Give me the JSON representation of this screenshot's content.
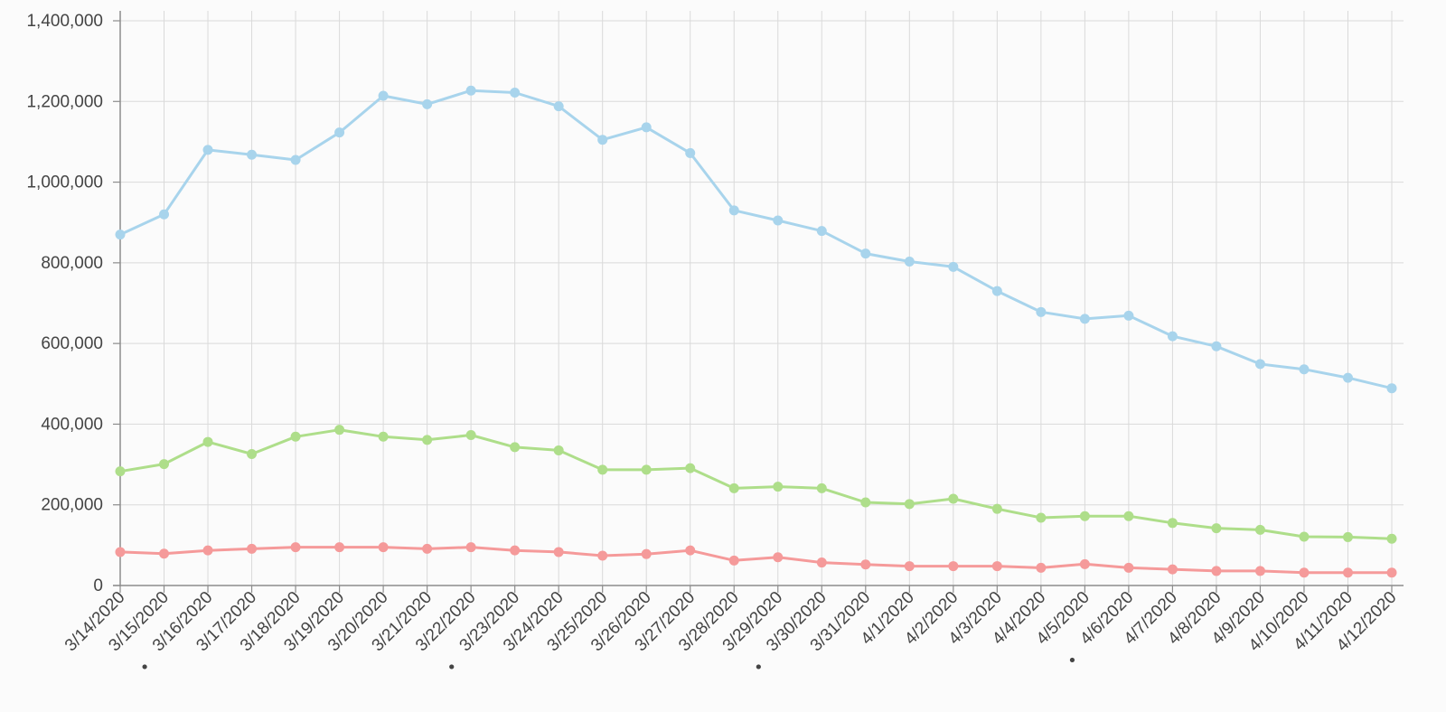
{
  "chart_data": {
    "type": "line",
    "title": "",
    "xlabel": "",
    "ylabel": "",
    "ylim": [
      0,
      1400000
    ],
    "yticks": [
      0,
      200000,
      400000,
      600000,
      800000,
      1000000,
      1200000,
      1400000
    ],
    "ytick_labels": [
      "0",
      "200,000",
      "400,000",
      "600,000",
      "800,000",
      "1,000,000",
      "1,200,000",
      "1,400,000"
    ],
    "grid": true,
    "legend": "none",
    "categories": [
      "3/14/2020",
      "3/15/2020",
      "3/16/2020",
      "3/17/2020",
      "3/18/2020",
      "3/19/2020",
      "3/20/2020",
      "3/21/2020",
      "3/22/2020",
      "3/23/2020",
      "3/24/2020",
      "3/25/2020",
      "3/26/2020",
      "3/27/2020",
      "3/28/2020",
      "3/29/2020",
      "3/30/2020",
      "3/31/2020",
      "4/1/2020",
      "4/2/2020",
      "4/3/2020",
      "4/4/2020",
      "4/5/2020",
      "4/6/2020",
      "4/7/2020",
      "4/8/2020",
      "4/9/2020",
      "4/10/2020",
      "4/11/2020",
      "4/12/2020"
    ],
    "marked_categories": [
      "3/16/2020",
      "3/23/2020",
      "3/30/2020",
      "4/6/2020"
    ],
    "series": [
      {
        "color": "#a8d4ec",
        "values": [
          870000,
          920000,
          1080000,
          1068000,
          1055000,
          1123000,
          1214000,
          1193000,
          1227000,
          1222000,
          1188000,
          1105000,
          1136000,
          1072000,
          930000,
          905000,
          879000,
          823000,
          803000,
          790000,
          730000,
          678000,
          661000,
          669000,
          618000,
          593000,
          549000,
          536000,
          515000,
          489000
        ]
      },
      {
        "color": "#aede8a",
        "values": [
          283000,
          301000,
          356000,
          326000,
          369000,
          386000,
          369000,
          361000,
          373000,
          343000,
          335000,
          287000,
          287000,
          291000,
          241000,
          245000,
          241000,
          206000,
          202000,
          215000,
          190000,
          168000,
          172000,
          172000,
          155000,
          142000,
          138000,
          121000,
          120000,
          116000
        ]
      },
      {
        "color": "#f59a9a",
        "values": [
          83000,
          79000,
          87000,
          91000,
          95000,
          95000,
          95000,
          91000,
          95000,
          87000,
          83000,
          74000,
          78000,
          87000,
          62000,
          70000,
          57000,
          52000,
          48000,
          48000,
          48000,
          44000,
          53000,
          44000,
          40000,
          36000,
          36000,
          32000,
          32000,
          32000
        ]
      }
    ]
  }
}
